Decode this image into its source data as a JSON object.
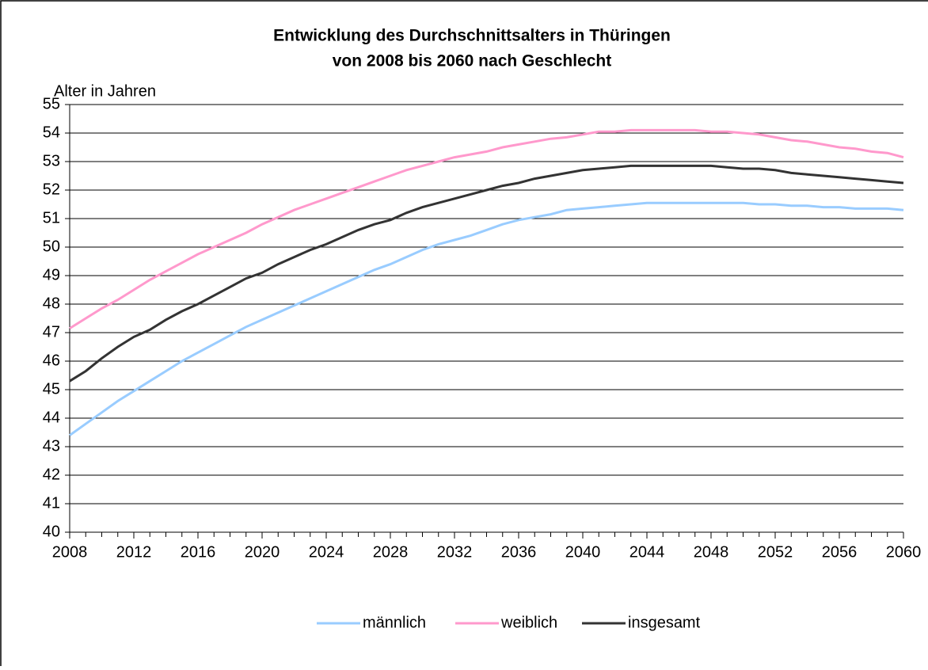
{
  "chart_data": {
    "type": "line",
    "title": [
      "Entwicklung des Durchschnittsalters in Thüringen",
      "von 2008 bis 2060 nach Geschlecht"
    ],
    "y_label": "Alter in Jahren",
    "x": [
      2008,
      2009,
      2010,
      2011,
      2012,
      2013,
      2014,
      2015,
      2016,
      2017,
      2018,
      2019,
      2020,
      2021,
      2022,
      2023,
      2024,
      2025,
      2026,
      2027,
      2028,
      2029,
      2030,
      2031,
      2032,
      2033,
      2034,
      2035,
      2036,
      2037,
      2038,
      2039,
      2040,
      2041,
      2042,
      2043,
      2044,
      2045,
      2046,
      2047,
      2048,
      2049,
      2050,
      2051,
      2052,
      2053,
      2054,
      2055,
      2056,
      2057,
      2058,
      2059,
      2060
    ],
    "series": [
      {
        "name": "männlich",
        "color": "#99ccff",
        "values": [
          43.4,
          43.8,
          44.2,
          44.6,
          44.95,
          45.3,
          45.65,
          46.0,
          46.3,
          46.6,
          46.9,
          47.2,
          47.45,
          47.7,
          47.95,
          48.2,
          48.45,
          48.7,
          48.95,
          49.2,
          49.4,
          49.65,
          49.9,
          50.1,
          50.25,
          50.4,
          50.6,
          50.8,
          50.95,
          51.05,
          51.15,
          51.3,
          51.35,
          51.4,
          51.45,
          51.5,
          51.55,
          51.55,
          51.55,
          51.55,
          51.55,
          51.55,
          51.55,
          51.5,
          51.5,
          51.45,
          51.45,
          51.4,
          51.4,
          51.35,
          51.35,
          51.35,
          51.3
        ]
      },
      {
        "name": "weiblich",
        "color": "#ff99cc",
        "values": [
          47.15,
          47.5,
          47.85,
          48.15,
          48.5,
          48.85,
          49.15,
          49.45,
          49.75,
          50.0,
          50.25,
          50.5,
          50.8,
          51.05,
          51.3,
          51.5,
          51.7,
          51.9,
          52.1,
          52.3,
          52.5,
          52.7,
          52.85,
          53.0,
          53.15,
          53.25,
          53.35,
          53.5,
          53.6,
          53.7,
          53.8,
          53.85,
          53.95,
          54.05,
          54.05,
          54.1,
          54.1,
          54.1,
          54.1,
          54.1,
          54.05,
          54.05,
          54.0,
          53.95,
          53.85,
          53.75,
          53.7,
          53.6,
          53.5,
          53.45,
          53.35,
          53.3,
          53.15
        ]
      },
      {
        "name": "insgesamt",
        "color": "#333333",
        "values": [
          45.3,
          45.65,
          46.1,
          46.5,
          46.85,
          47.1,
          47.45,
          47.75,
          48.0,
          48.3,
          48.6,
          48.9,
          49.1,
          49.4,
          49.65,
          49.9,
          50.1,
          50.35,
          50.6,
          50.8,
          50.95,
          51.2,
          51.4,
          51.55,
          51.7,
          51.85,
          52.0,
          52.15,
          52.25,
          52.4,
          52.5,
          52.6,
          52.7,
          52.75,
          52.8,
          52.85,
          52.85,
          52.85,
          52.85,
          52.85,
          52.85,
          52.8,
          52.75,
          52.75,
          52.7,
          52.6,
          52.55,
          52.5,
          52.45,
          52.4,
          52.35,
          52.3,
          52.25
        ]
      }
    ],
    "xlim": [
      2008,
      2060
    ],
    "xticks": [
      2008,
      2012,
      2016,
      2020,
      2024,
      2028,
      2032,
      2036,
      2040,
      2044,
      2048,
      2052,
      2056,
      2060
    ],
    "ylim": [
      40,
      55
    ],
    "yticks": [
      40,
      41,
      42,
      43,
      44,
      45,
      46,
      47,
      48,
      49,
      50,
      51,
      52,
      53,
      54,
      55
    ],
    "grid": true,
    "legend": "bottom"
  }
}
